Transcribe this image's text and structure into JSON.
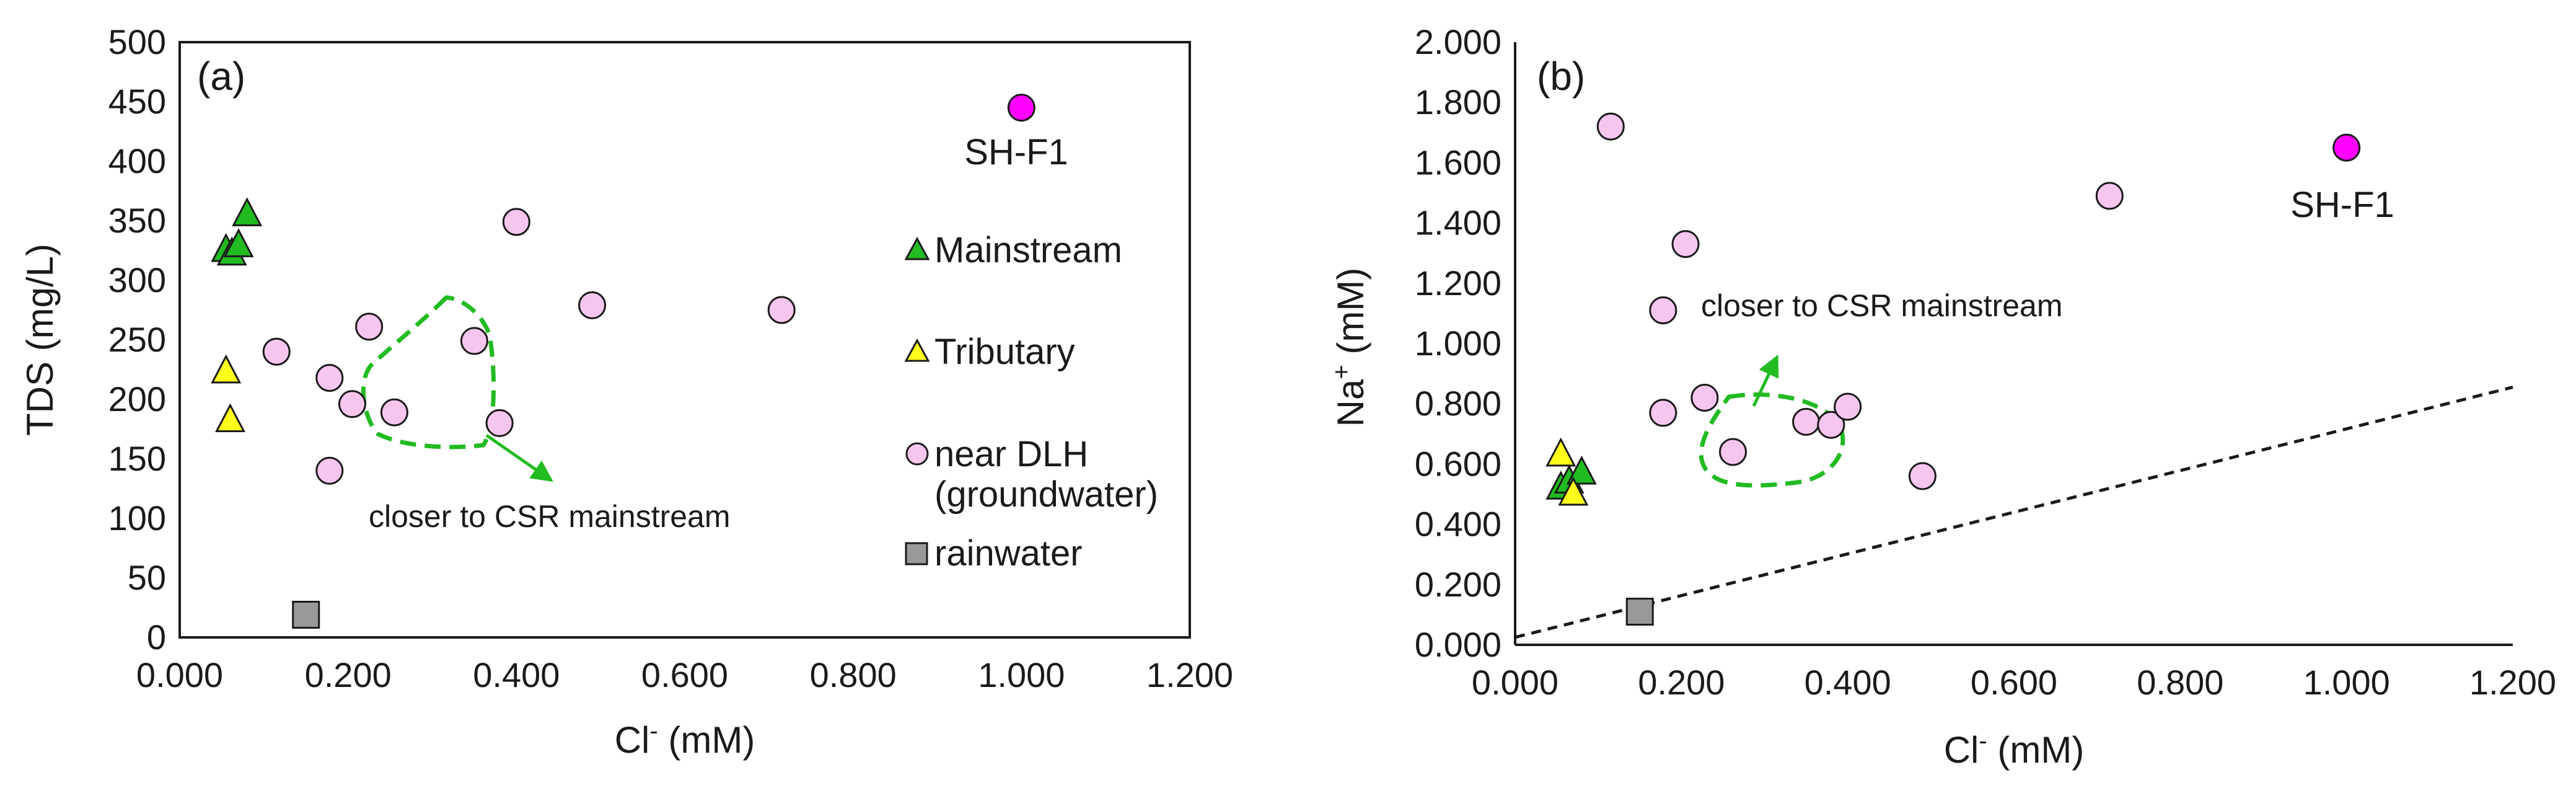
{
  "chart_data": [
    {
      "type": "scatter",
      "panel": "(a)",
      "xlabel": "Cl",
      "xlabel_superscript": "-",
      "xlabel_unit": " (mM)",
      "ylabel": "TDS (mg/L)",
      "xlim": [
        0,
        1.2
      ],
      "ylim": [
        0,
        500
      ],
      "xticks": [
        "0.000",
        "0.200",
        "0.400",
        "0.600",
        "0.800",
        "1.000",
        "1.200"
      ],
      "yticks": [
        "0",
        "50",
        "100",
        "150",
        "200",
        "250",
        "300",
        "350",
        "400",
        "450",
        "500"
      ],
      "series": [
        {
          "name": "SH-F1",
          "marker": "circle",
          "color": "#ff00ff",
          "points": [
            {
              "x": 1.0,
              "y": 445
            }
          ]
        },
        {
          "name": "Mainstream",
          "marker": "triangle",
          "color": "#22bb22",
          "points": [
            {
              "x": 0.055,
              "y": 325
            },
            {
              "x": 0.062,
              "y": 322
            },
            {
              "x": 0.07,
              "y": 329
            },
            {
              "x": 0.08,
              "y": 355
            }
          ]
        },
        {
          "name": "Tributary",
          "marker": "triangle",
          "color": "#ffff1a",
          "points": [
            {
              "x": 0.055,
              "y": 223
            },
            {
              "x": 0.06,
              "y": 182
            }
          ]
        },
        {
          "name": "near DLH (groundwater)",
          "marker": "circle",
          "color": "#f7c6ef",
          "points": [
            {
              "x": 0.115,
              "y": 240
            },
            {
              "x": 0.178,
              "y": 218
            },
            {
              "x": 0.205,
              "y": 196
            },
            {
              "x": 0.225,
              "y": 261
            },
            {
              "x": 0.255,
              "y": 189
            },
            {
              "x": 0.178,
              "y": 140
            },
            {
              "x": 0.35,
              "y": 249
            },
            {
              "x": 0.38,
              "y": 180
            },
            {
              "x": 0.4,
              "y": 349
            },
            {
              "x": 0.49,
              "y": 279
            },
            {
              "x": 0.715,
              "y": 275
            }
          ]
        },
        {
          "name": "rainwater",
          "marker": "square",
          "color": "#999999",
          "points": [
            {
              "x": 0.15,
              "y": 19
            }
          ]
        }
      ],
      "legend": [
        "Mainstream",
        "Tributary",
        "near DLH",
        "(groundwater)",
        "rainwater"
      ],
      "point_labels": [
        {
          "text": "SH-F1",
          "near": "SH-F1"
        }
      ],
      "annotations": [
        {
          "text": "closer to CSR mainstream",
          "color": "#22bb22"
        }
      ]
    },
    {
      "type": "scatter",
      "panel": "(b)",
      "xlabel": "Cl",
      "xlabel_superscript": "-",
      "xlabel_unit": " (mM)",
      "ylabel": "Na",
      "ylabel_superscript": "+",
      "ylabel_unit": " (mM)",
      "xlim": [
        0,
        1.2
      ],
      "ylim": [
        0,
        2.0
      ],
      "xticks": [
        "0.000",
        "0.200",
        "0.400",
        "0.600",
        "0.800",
        "1.000",
        "1.200"
      ],
      "yticks": [
        "0.000",
        "0.200",
        "0.400",
        "0.600",
        "0.800",
        "1.000",
        "1.200",
        "1.400",
        "1.600",
        "1.800",
        "2.000"
      ],
      "series": [
        {
          "name": "SH-F1",
          "marker": "circle",
          "color": "#ff00ff",
          "points": [
            {
              "x": 1.0,
              "y": 1.65
            }
          ]
        },
        {
          "name": "Mainstream",
          "marker": "triangle",
          "color": "#22bb22",
          "points": [
            {
              "x": 0.055,
              "y": 0.52
            },
            {
              "x": 0.065,
              "y": 0.54
            },
            {
              "x": 0.08,
              "y": 0.57
            }
          ]
        },
        {
          "name": "Tributary",
          "marker": "triangle",
          "color": "#ffff1a",
          "points": [
            {
              "x": 0.055,
              "y": 0.63
            },
            {
              "x": 0.07,
              "y": 0.5
            }
          ]
        },
        {
          "name": "near DLH (groundwater)",
          "marker": "circle",
          "color": "#f7c6ef",
          "points": [
            {
              "x": 0.115,
              "y": 1.72
            },
            {
              "x": 0.205,
              "y": 1.33
            },
            {
              "x": 0.178,
              "y": 1.11
            },
            {
              "x": 0.178,
              "y": 0.77
            },
            {
              "x": 0.228,
              "y": 0.82
            },
            {
              "x": 0.262,
              "y": 0.64
            },
            {
              "x": 0.35,
              "y": 0.74
            },
            {
              "x": 0.38,
              "y": 0.73
            },
            {
              "x": 0.4,
              "y": 0.79
            },
            {
              "x": 0.49,
              "y": 0.56
            },
            {
              "x": 0.715,
              "y": 1.49
            }
          ]
        },
        {
          "name": "rainwater",
          "marker": "square",
          "color": "#999999",
          "points": [
            {
              "x": 0.15,
              "y": 0.11
            }
          ]
        }
      ],
      "reference_line": {
        "style": "dashed",
        "from": [
          0,
          0.025
        ],
        "to": [
          1.2,
          0.855
        ]
      },
      "point_labels": [
        {
          "text": "SH-F1",
          "near": "SH-F1"
        }
      ],
      "annotations": [
        {
          "text": "closer to CSR mainstream",
          "color": "#22bb22"
        }
      ]
    }
  ]
}
